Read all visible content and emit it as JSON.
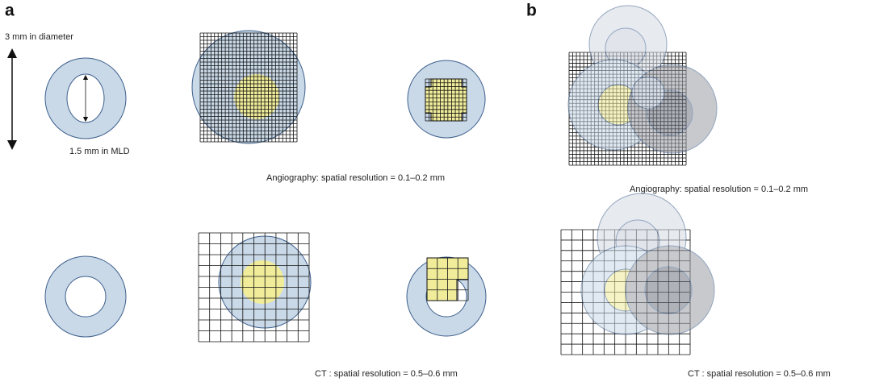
{
  "panel_a": {
    "label": "a",
    "diameter_label": "3 mm in diameter",
    "mld_label": "1.5 mm in MLD",
    "angiography_caption": "Angiography: spatial resolution = 0.1–0.2 mm",
    "ct_caption": "CT : spatial resolution = 0.5–0.6 mm"
  },
  "panel_b": {
    "label": "b",
    "angiography_caption": "Angiography: spatial resolution = 0.1–0.2 mm",
    "ct_caption": "CT : spatial resolution = 0.5–0.6 mm"
  }
}
